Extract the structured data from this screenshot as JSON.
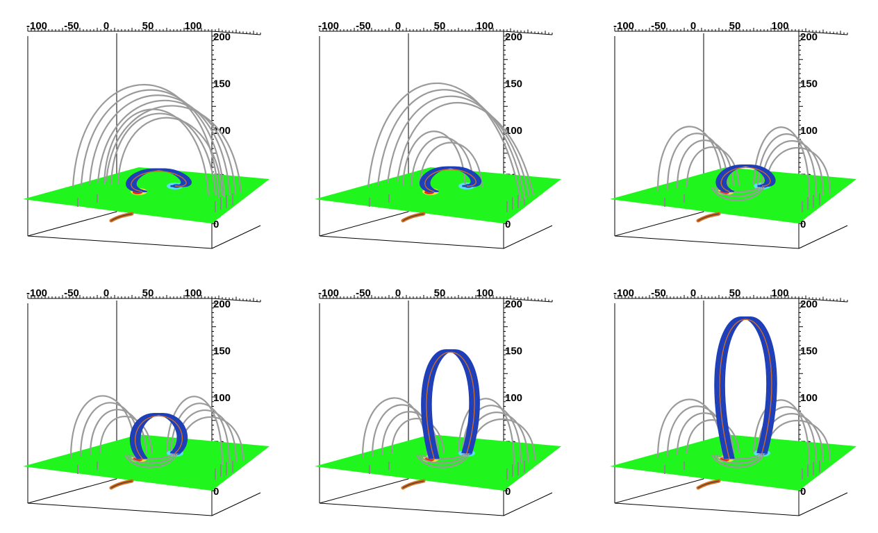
{
  "figure": {
    "panel_count": 6,
    "x_tick_labels": [
      "-100",
      "-50",
      "0",
      "50",
      "100"
    ],
    "z_tick_labels": [
      "0",
      "50",
      "100",
      "150",
      "200"
    ],
    "colors": {
      "plane": "#21f51e",
      "field_lines_grey": "#9a9a9a",
      "flux_rope_blue": "#1f3fb8",
      "flux_rope_core": "#c96a2c",
      "axes": "#000000"
    }
  },
  "panels": [
    {
      "id": "panel-1",
      "rope_height": 58,
      "rope_spread": 0.9,
      "arcade_type": "single",
      "arcade_height": 168
    },
    {
      "id": "panel-2",
      "rope_height": 60,
      "rope_spread": 0.7,
      "arcade_type": "double",
      "arcade_height": 178
    },
    {
      "id": "panel-3",
      "rope_height": 62,
      "rope_spread": 0.6,
      "arcade_type": "side",
      "arcade_height": 118
    },
    {
      "id": "panel-4",
      "rope_height": 82,
      "rope_spread": 0.5,
      "arcade_type": "side",
      "arcade_height": 115
    },
    {
      "id": "panel-5",
      "rope_height": 150,
      "rope_spread": 0.55,
      "arcade_type": "side",
      "arcade_height": 112
    },
    {
      "id": "panel-6",
      "rope_height": 185,
      "rope_spread": 0.75,
      "arcade_type": "side",
      "arcade_height": 110
    }
  ]
}
